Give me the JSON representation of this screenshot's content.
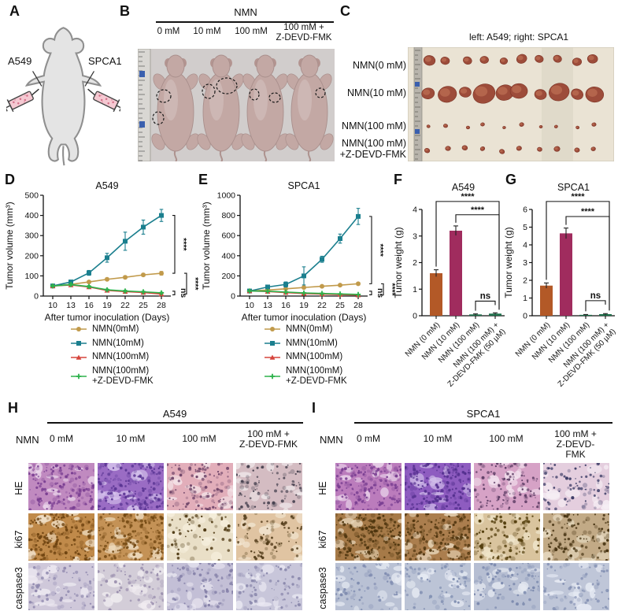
{
  "panel_labels": {
    "A": "A",
    "B": "B",
    "C": "C",
    "D": "D",
    "E": "E",
    "F": "F",
    "G": "G",
    "H": "H",
    "I": "I"
  },
  "panelA": {
    "left_injection": "A549",
    "right_injection": "SPCA1"
  },
  "panelB": {
    "group_title": "NMN",
    "doses": [
      "0 mM",
      "10 mM",
      "100 mM",
      "100 mM +\nZ-DEVD-FMK"
    ]
  },
  "panelC": {
    "caption": "left: A549; right: SPCA1",
    "row_labels": [
      "NMN(0 mM)",
      "NMN(10 mM)",
      "NMN(100 mM)",
      "NMN(100 mM)\n+Z-DEVD-FMK"
    ]
  },
  "legend": {
    "items": [
      {
        "label": "NMN(0mM)",
        "color": "#c19a4b",
        "marker": "circle"
      },
      {
        "label": "NMN(10mM)",
        "color": "#1b7f8e",
        "marker": "square"
      },
      {
        "label": "NMN(100mM)",
        "color": "#d6453d",
        "marker": "triangle"
      },
      {
        "label": "NMN(100mM)\n+Z-DEVD-FMK",
        "color": "#2eb24c",
        "marker": "plus"
      }
    ]
  },
  "chart_data": [
    {
      "id": "D",
      "type": "line",
      "title": "A549",
      "xlabel": "After tumor inoculation (Days)",
      "ylabel": "Tumor volume (mm³)",
      "x": [
        10,
        13,
        16,
        19,
        22,
        25,
        28
      ],
      "ylim": [
        0,
        500
      ],
      "yticks": [
        0,
        100,
        200,
        300,
        400,
        500
      ],
      "grid": false,
      "legend_position": "bottom",
      "series": [
        {
          "name": "NMN(0mM)",
          "color": "#c19a4b",
          "marker": "circle",
          "values": [
            50,
            58,
            70,
            83,
            93,
            105,
            113
          ],
          "err": [
            5,
            5,
            6,
            6,
            7,
            7,
            9
          ]
        },
        {
          "name": "NMN(10mM)",
          "color": "#1b7f8e",
          "marker": "square",
          "values": [
            50,
            70,
            115,
            190,
            272,
            342,
            400
          ],
          "err": [
            6,
            8,
            12,
            22,
            45,
            35,
            30
          ]
        },
        {
          "name": "NMN(100mM)",
          "color": "#d6453d",
          "marker": "triangle",
          "values": [
            50,
            55,
            45,
            28,
            22,
            18,
            10
          ],
          "err": [
            4,
            5,
            5,
            4,
            4,
            3,
            3
          ]
        },
        {
          "name": "NMN(100mM)+Z-DEVD-FMK",
          "color": "#2eb24c",
          "marker": "plus",
          "values": [
            50,
            57,
            47,
            31,
            25,
            21,
            16
          ],
          "err": [
            4,
            5,
            5,
            4,
            4,
            3,
            3
          ]
        }
      ],
      "sig": [
        {
          "label": "****",
          "y1": 400,
          "y2": 113,
          "lane": 0
        },
        {
          "label": "ns",
          "y1": 24,
          "y2": 6,
          "lane": 0
        },
        {
          "label": "****",
          "y1": 113,
          "y2": 10,
          "lane": 1
        }
      ]
    },
    {
      "id": "E",
      "type": "line",
      "title": "SPCA1",
      "xlabel": "After tumor inoculation (Days)",
      "ylabel": "Tumor volume (mm³)",
      "x": [
        10,
        13,
        16,
        19,
        22,
        25,
        28
      ],
      "ylim": [
        0,
        1000
      ],
      "yticks": [
        0,
        200,
        400,
        600,
        800,
        1000
      ],
      "grid": false,
      "legend_position": "bottom",
      "series": [
        {
          "name": "NMN(0mM)",
          "color": "#c19a4b",
          "marker": "circle",
          "values": [
            50,
            60,
            72,
            85,
            97,
            108,
            122
          ],
          "err": [
            6,
            6,
            7,
            8,
            8,
            9,
            12
          ]
        },
        {
          "name": "NMN(10mM)",
          "color": "#1b7f8e",
          "marker": "square",
          "values": [
            50,
            90,
            115,
            200,
            365,
            570,
            790
          ],
          "err": [
            10,
            18,
            25,
            90,
            30,
            45,
            80
          ]
        },
        {
          "name": "NMN(100mM)",
          "color": "#d6453d",
          "marker": "triangle",
          "values": [
            50,
            45,
            35,
            25,
            20,
            15,
            10
          ],
          "err": [
            5,
            5,
            5,
            4,
            4,
            3,
            3
          ]
        },
        {
          "name": "NMN(100mM)+Z-DEVD-FMK",
          "color": "#2eb24c",
          "marker": "plus",
          "values": [
            50,
            48,
            40,
            31,
            26,
            21,
            16
          ],
          "err": [
            5,
            5,
            5,
            4,
            4,
            3,
            3
          ]
        }
      ],
      "sig": [
        {
          "label": "****",
          "y1": 790,
          "y2": 122,
          "lane": 0
        },
        {
          "label": "ns",
          "y1": 48,
          "y2": 12,
          "lane": 0
        },
        {
          "label": "****",
          "y1": 122,
          "y2": 10,
          "lane": 1
        }
      ]
    },
    {
      "id": "F",
      "type": "bar",
      "title": "A549",
      "ylabel": "Tumor weight (g)",
      "ylim": [
        0,
        4
      ],
      "yticks": [
        0,
        1,
        2,
        3,
        4
      ],
      "categories": [
        "NMN (0 mM)",
        "NMN (10 mM)",
        "NMN (100 mM)",
        "NMN (100 mM) +\nZ-DEVD-FMK (50 µM)"
      ],
      "values": [
        1.6,
        3.2,
        0.05,
        0.08
      ],
      "errors": [
        0.13,
        0.18,
        0.02,
        0.03
      ],
      "colors": [
        "#b35927",
        "#a02c5e",
        "#20714c",
        "#20714c"
      ],
      "sig": [
        {
          "label": "****",
          "i1": 0,
          "i2": 3,
          "y": 4.3
        },
        {
          "label": "****",
          "i1": 1,
          "i2": 3,
          "y": 3.8
        },
        {
          "label": "ns",
          "i1": 2,
          "i2": 3,
          "y": 0.55
        }
      ]
    },
    {
      "id": "G",
      "type": "bar",
      "title": "SPCA1",
      "ylabel": "Tumor weight (g)",
      "ylim": [
        0,
        6
      ],
      "yticks": [
        0,
        1,
        2,
        3,
        4,
        5,
        6
      ],
      "categories": [
        "NMN (0 mM)",
        "NMN (10 mM)",
        "NMN (100 mM)",
        "NMN (100 mM) +\nZ-DEVD-FMK (50 µM)"
      ],
      "values": [
        1.7,
        4.65,
        0.05,
        0.09
      ],
      "errors": [
        0.15,
        0.3,
        0.02,
        0.03
      ],
      "colors": [
        "#b35927",
        "#a02c5e",
        "#20714c",
        "#20714c"
      ],
      "sig": [
        {
          "label": "****",
          "i1": 0,
          "i2": 3,
          "y": 6.45
        },
        {
          "label": "****",
          "i1": 1,
          "i2": 3,
          "y": 5.6
        },
        {
          "label": "ns",
          "i1": 2,
          "i2": 3,
          "y": 0.85
        }
      ]
    }
  ],
  "panelH": {
    "title": "A549",
    "nmn_label": "NMN",
    "col_labels": [
      "0 mM",
      "10 mM",
      "100 mM",
      "100 mM +\nZ-DEVD-FMK"
    ],
    "row_labels": [
      "HE",
      "ki67",
      "caspase3"
    ]
  },
  "panelI": {
    "title": "SPCA1",
    "nmn_label": "NMN",
    "col_labels": [
      "0 mM",
      "10 mM",
      "100 mM",
      "100 mM +\nZ-DEVD-FMK"
    ],
    "row_labels": [
      "HE",
      "ki67",
      "caspase3"
    ]
  },
  "histology": {
    "H": [
      [
        {
          "base": "#c08ac0",
          "dot": "#7a3f92",
          "light": "#ead6ea",
          "density": 120
        },
        {
          "base": "#9a6cc4",
          "dot": "#5b3694",
          "light": "#d8c6ee",
          "density": 140
        },
        {
          "base": "#e2aeba",
          "dot": "#6e4468",
          "light": "#f4e4e8",
          "density": 90
        },
        {
          "base": "#d4bcc2",
          "dot": "#4a4452",
          "light": "#efe8ea",
          "density": 70
        }
      ],
      [
        {
          "base": "#c08a4a",
          "dot": "#6e4310",
          "light": "#f0e0c8",
          "density": 150
        },
        {
          "base": "#c49256",
          "dot": "#744a14",
          "light": "#eedcc0",
          "density": 140
        },
        {
          "base": "#e9dfc7",
          "dot": "#4f3a14",
          "light": "#f6efdd",
          "density": 45
        },
        {
          "base": "#e0c4a2",
          "dot": "#503a18",
          "light": "#f2e6d2",
          "density": 60
        }
      ],
      [
        {
          "base": "#cfc8da",
          "dot": "#8f88ae",
          "light": "#eeeaf2",
          "density": 60
        },
        {
          "base": "#d3cdd8",
          "dot": "#9a8fae",
          "light": "#f0ecf0",
          "density": 55
        },
        {
          "base": "#c3bfd6",
          "dot": "#8480a8",
          "light": "#e8e6f0",
          "density": 70
        },
        {
          "base": "#c8c6da",
          "dot": "#8a88ac",
          "light": "#ecebf4",
          "density": 60
        }
      ]
    ],
    "I": [
      [
        {
          "base": "#bb7cbc",
          "dot": "#7a3f92",
          "light": "#ecd8ec",
          "density": 130
        },
        {
          "base": "#8e5cc0",
          "dot": "#54308e",
          "light": "#d2c0ea",
          "density": 150
        },
        {
          "base": "#d6a2c6",
          "dot": "#5c3c64",
          "light": "#f2e2ee",
          "density": 90
        },
        {
          "base": "#e4cede",
          "dot": "#3c3c66",
          "light": "#f6eef4",
          "density": 60
        }
      ],
      [
        {
          "base": "#a67a48",
          "dot": "#4e350e",
          "light": "#e6d4b8",
          "density": 150
        },
        {
          "base": "#ab7e4e",
          "dot": "#523710",
          "light": "#e8d6ba",
          "density": 150
        },
        {
          "base": "#d9c49e",
          "dot": "#55400f",
          "light": "#f0e6cc",
          "density": 80
        },
        {
          "base": "#c2aa86",
          "dot": "#463312",
          "light": "#e8dcc4",
          "density": 90
        }
      ],
      [
        {
          "base": "#b9c1d4",
          "dot": "#7f8cb0",
          "light": "#e6eaf2",
          "density": 55
        },
        {
          "base": "#bcc4d6",
          "dot": "#8290b2",
          "light": "#e8ecf4",
          "density": 55
        },
        {
          "base": "#b6bed2",
          "dot": "#7c8aae",
          "light": "#e4e8f0",
          "density": 60
        },
        {
          "base": "#bfc6d8",
          "dot": "#8692b4",
          "light": "#eaeef6",
          "density": 55
        }
      ]
    ]
  },
  "colors": {
    "teal": "#1b7f8e",
    "tan": "#c19a4b",
    "red": "#d6453d",
    "green": "#2eb24c",
    "bar_brown": "#b35927",
    "bar_maroon": "#a02c5e",
    "bar_green": "#20714c",
    "photoB_bg": "#cbc7c5",
    "mouse_body": "#c3a8a4",
    "photoC_bg": "#eae3d4",
    "tumor": "#9d4c3a"
  }
}
